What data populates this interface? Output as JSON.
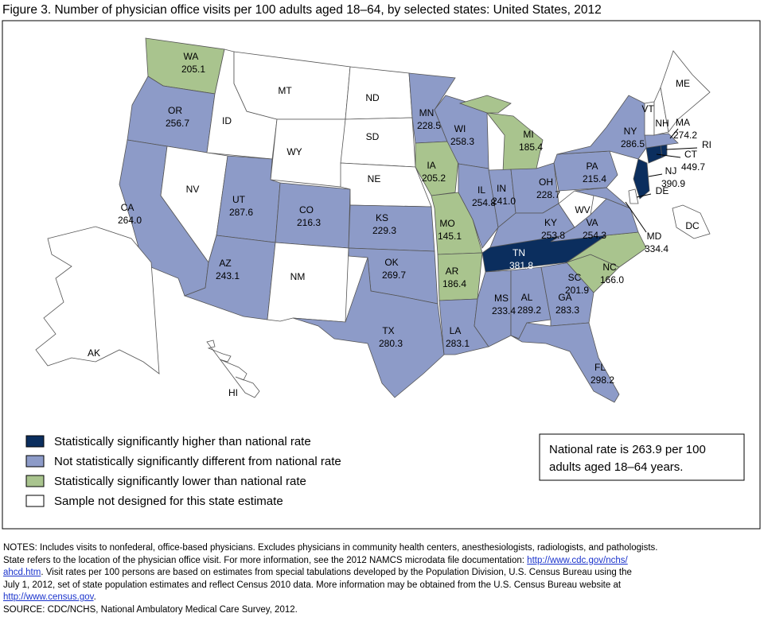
{
  "title": "Figure 3. Number of physician office visits per 100 adults aged 18–64, by selected states: United States, 2012",
  "legend": [
    {
      "label": "Statistically significantly higher than national rate",
      "color": "#0b2e5e"
    },
    {
      "label": "Not statistically significantly different from national rate",
      "color": "#8d9bc8"
    },
    {
      "label": "Statistically significantly lower than national rate",
      "color": "#a9c48e"
    },
    {
      "label": "Sample not designed for this state estimate",
      "color": "#ffffff"
    }
  ],
  "national_note": [
    "National rate is 263.9 per 100",
    "adults aged 18–64 years."
  ],
  "states": [
    {
      "abbr": "WA",
      "rate": "205.1",
      "color": "#a9c48e"
    },
    {
      "abbr": "OR",
      "rate": "256.7",
      "color": "#8d9bc8"
    },
    {
      "abbr": "CA",
      "rate": "264.0",
      "color": "#8d9bc8"
    },
    {
      "abbr": "NV",
      "color": "#ffffff"
    },
    {
      "abbr": "ID",
      "color": "#ffffff"
    },
    {
      "abbr": "MT",
      "color": "#ffffff"
    },
    {
      "abbr": "WY",
      "color": "#ffffff"
    },
    {
      "abbr": "UT",
      "rate": "287.6",
      "color": "#8d9bc8"
    },
    {
      "abbr": "CO",
      "rate": "216.3",
      "color": "#8d9bc8"
    },
    {
      "abbr": "AZ",
      "rate": "243.1",
      "color": "#8d9bc8"
    },
    {
      "abbr": "NM",
      "color": "#ffffff"
    },
    {
      "abbr": "ND",
      "color": "#ffffff"
    },
    {
      "abbr": "SD",
      "color": "#ffffff"
    },
    {
      "abbr": "NE",
      "color": "#ffffff"
    },
    {
      "abbr": "KS",
      "rate": "229.3",
      "color": "#8d9bc8"
    },
    {
      "abbr": "OK",
      "rate": "269.7",
      "color": "#8d9bc8"
    },
    {
      "abbr": "TX",
      "rate": "280.3",
      "color": "#8d9bc8"
    },
    {
      "abbr": "MN",
      "rate": "228.5",
      "color": "#8d9bc8"
    },
    {
      "abbr": "IA",
      "rate": "205.2",
      "color": "#a9c48e"
    },
    {
      "abbr": "MO",
      "rate": "145.1",
      "color": "#a9c48e"
    },
    {
      "abbr": "AR",
      "rate": "186.4",
      "color": "#a9c48e"
    },
    {
      "abbr": "LA",
      "rate": "283.1",
      "color": "#8d9bc8"
    },
    {
      "abbr": "WI",
      "rate": "258.3",
      "color": "#8d9bc8"
    },
    {
      "abbr": "MI",
      "rate": "185.4",
      "color": "#a9c48e"
    },
    {
      "abbr": "IL",
      "rate": "254.8",
      "color": "#8d9bc8"
    },
    {
      "abbr": "IN",
      "rate": "241.0",
      "color": "#8d9bc8"
    },
    {
      "abbr": "OH",
      "rate": "228.7",
      "color": "#8d9bc8"
    },
    {
      "abbr": "KY",
      "rate": "253.8",
      "color": "#8d9bc8"
    },
    {
      "abbr": "TN",
      "rate": "381.8",
      "color": "#0b2e5e"
    },
    {
      "abbr": "MS",
      "rate": "233.4",
      "color": "#8d9bc8"
    },
    {
      "abbr": "AL",
      "rate": "289.2",
      "color": "#8d9bc8"
    },
    {
      "abbr": "GA",
      "rate": "283.3",
      "color": "#8d9bc8"
    },
    {
      "abbr": "FL",
      "rate": "298.2",
      "color": "#8d9bc8"
    },
    {
      "abbr": "SC",
      "rate": "201.9",
      "color": "#a9c48e"
    },
    {
      "abbr": "NC",
      "rate": "166.0",
      "color": "#a9c48e"
    },
    {
      "abbr": "VA",
      "rate": "254.3",
      "color": "#8d9bc8"
    },
    {
      "abbr": "WV",
      "color": "#ffffff"
    },
    {
      "abbr": "PA",
      "rate": "215.4",
      "color": "#8d9bc8"
    },
    {
      "abbr": "NY",
      "rate": "286.5",
      "color": "#8d9bc8"
    },
    {
      "abbr": "MD",
      "rate": "334.4",
      "color": "#8d9bc8"
    },
    {
      "abbr": "DE",
      "color": "#ffffff"
    },
    {
      "abbr": "NJ",
      "rate": "390.9",
      "color": "#0b2e5e"
    },
    {
      "abbr": "CT",
      "rate": "449.7",
      "color": "#0b2e5e"
    },
    {
      "abbr": "RI",
      "color": "#0b2e5e"
    },
    {
      "abbr": "MA",
      "rate": "274.2",
      "color": "#8d9bc8"
    },
    {
      "abbr": "VT",
      "color": "#ffffff"
    },
    {
      "abbr": "NH",
      "color": "#ffffff"
    },
    {
      "abbr": "ME",
      "color": "#ffffff"
    },
    {
      "abbr": "DC",
      "color": "#ffffff"
    },
    {
      "abbr": "AK",
      "color": "#ffffff"
    },
    {
      "abbr": "HI",
      "color": "#ffffff"
    }
  ],
  "notes": {
    "text1": "NOTES: Includes visits to nonfederal, office-based physicians. Excludes physicians in community health centers, anesthesiologists, radiologists, and pathologists.",
    "text2": "State refers to the location of the physician office visit. For more information, see the 2012 NAMCS microdata file documentation: ",
    "link1a": "http://www.cdc.gov/nchs/",
    "link1b": "ahcd.htm",
    "text3": ". Visit rates per 100 persons are based on estimates from special tabulations developed by the Population Division, U.S. Census Bureau using the",
    "text4": "July 1, 2012, set of state population estimates and reflect Census 2010 data. More information may be obtained from the U.S. Census Bureau website at",
    "link2": "http://www.census.gov",
    "text5": ".",
    "source": "SOURCE: CDC/NCHS, National Ambulatory Medical Care Survey, 2012."
  }
}
